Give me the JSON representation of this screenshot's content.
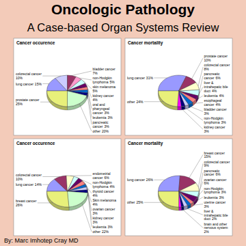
{
  "title": "Oncologic Pathology",
  "subtitle": "A Case-based Organ Systems Review",
  "author": "By: Marc Imhotep Cray MD",
  "chart_data": [
    {
      "type": "pie",
      "title": "Cancer occurence",
      "categories": [
        "lung cancer",
        "colorectal cancer",
        "bladder cancer",
        "non-Hodgkin lymphoma",
        "skin melanoma",
        "kidney cancer",
        "oral and pharyngeal cancer",
        "leukemia",
        "pancreatic cancer",
        "other",
        "prostate cancer"
      ],
      "values": [
        15,
        10,
        7,
        5,
        5,
        4,
        3,
        3,
        3,
        20,
        25
      ],
      "value_labels": [
        "15%",
        "10%",
        "7%",
        "5%",
        "5%",
        "4%",
        "3%",
        "3%",
        "3%",
        "20%",
        "25%"
      ],
      "colors": [
        "#9999ff",
        "#ccccff",
        "#993366",
        "#ff99cc",
        "#ccffff",
        "#660066",
        "#ff8080",
        "#0066cc",
        "#000080",
        "#ccffcc",
        "#e8f07a"
      ],
      "data_labels": true
    },
    {
      "type": "pie",
      "title": "Cancer mortality",
      "categories": [
        "lung cancer",
        "prostate cancer",
        "colorectal cancer",
        "pancreatic cancer",
        "liver & intrahepatic bile duct",
        "leukemia",
        "esophageal cancer",
        "bladder cancer",
        "non-Hodgkin lymphoma",
        "kidney cancer",
        "other"
      ],
      "values": [
        31,
        10,
        8,
        6,
        4,
        4,
        4,
        3,
        3,
        3,
        24
      ],
      "value_labels": [
        "31%",
        "10%",
        "8%",
        "6%",
        "4%",
        "4%",
        "4%",
        "3%",
        "3%",
        "3%",
        "24%"
      ],
      "colors": [
        "#9999ff",
        "#993366",
        "#ffffcc",
        "#ccffff",
        "#660066",
        "#ff8080",
        "#0066cc",
        "#ccccff",
        "#000080",
        "#ff00ff",
        "#e8f07a"
      ],
      "data_labels": true
    },
    {
      "type": "pie",
      "title": "Cancer occurence",
      "categories": [
        "lung cancer",
        "colorectal cancer",
        "endometrial cancer",
        "non-Hodgkin lymphoma",
        "thyroid cancer",
        "Skin melanoma",
        "ovarian cancer",
        "kidney cancer",
        "leukemia",
        "other",
        "breast cancer"
      ],
      "values": [
        14,
        10,
        6,
        4,
        4,
        4,
        3,
        3,
        3,
        22,
        26
      ],
      "value_labels": [
        "14%",
        "10%",
        "6%",
        "4%",
        "4%",
        "4%",
        "3%",
        "3%",
        "3%",
        "22%",
        "26%"
      ],
      "colors": [
        "#9999ff",
        "#993366",
        "#ffffcc",
        "#ccffff",
        "#660066",
        "#ff8080",
        "#0066cc",
        "#ccccff",
        "#000080",
        "#ccffcc",
        "#e8f07a"
      ],
      "data_labels": true
    },
    {
      "type": "pie",
      "title": "Cancer mortality",
      "categories": [
        "lung cancer",
        "breast cancer",
        "colorectal cancer",
        "pancreatic cancer",
        "ovarian cancer",
        "non-Hodgkin lymphoma",
        "leukemia",
        "uterine cancer",
        "liver & intrahepatic bile duct",
        "brain and other nervous system",
        "other"
      ],
      "values": [
        26,
        15,
        9,
        6,
        6,
        3,
        3,
        3,
        2,
        2,
        25
      ],
      "value_labels": [
        "26%",
        "15%",
        "9%",
        "6%",
        "6%",
        "3%",
        "3%",
        "3%",
        "2%",
        "2%",
        "25%"
      ],
      "colors": [
        "#9999ff",
        "#993366",
        "#ffffcc",
        "#ccffff",
        "#660066",
        "#ff8080",
        "#0066cc",
        "#ccccff",
        "#000080",
        "#ff00ff",
        "#e8f07a"
      ],
      "data_labels": true
    }
  ]
}
